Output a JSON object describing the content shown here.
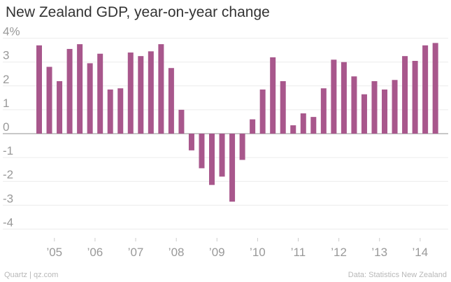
{
  "chart_data": {
    "type": "bar",
    "title": "New Zealand GDP, year-on-year change",
    "xlabel": "",
    "ylabel": "",
    "ylim": [
      -4.6,
      4.6
    ],
    "y_tick_values": [
      4,
      3,
      2,
      1,
      0,
      -1,
      -2,
      -3,
      -4
    ],
    "y_tick_labels": [
      "4%",
      "3",
      "2",
      "1",
      "0",
      "-1",
      "-2",
      "-3",
      "-4"
    ],
    "x_tick_labels": [
      "’05",
      "’06",
      "’07",
      "’08",
      "’09",
      "’10",
      "’11",
      "’12",
      "’13",
      "’14"
    ],
    "x_tick_bar_index": [
      1.5,
      5.5,
      9.5,
      13.5,
      17.5,
      21.5,
      25.5,
      29.5,
      33.5,
      37.5
    ],
    "grid": true,
    "series": [
      {
        "name": "GDP year-on-year change (%)",
        "color": "#a8578c",
        "values": [
          3.7,
          2.8,
          2.2,
          3.55,
          3.75,
          2.95,
          3.35,
          1.85,
          1.9,
          3.4,
          3.25,
          3.45,
          3.75,
          2.75,
          1.0,
          -0.7,
          -1.45,
          -2.15,
          -1.8,
          -2.85,
          -1.1,
          0.6,
          1.85,
          3.2,
          2.2,
          0.35,
          0.85,
          0.7,
          1.9,
          3.1,
          3.0,
          2.4,
          1.65,
          2.2,
          1.85,
          2.25,
          3.25,
          3.05,
          3.7,
          3.8
        ]
      }
    ]
  },
  "footer": {
    "credit": "Quartz | qz.com",
    "source": "Data: Statistics New Zealand"
  }
}
